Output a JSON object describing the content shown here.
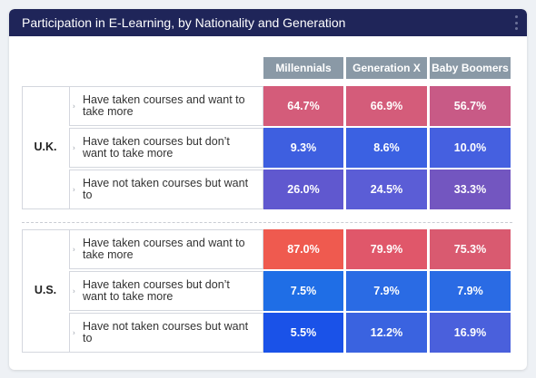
{
  "header": {
    "title": "Participation in E-Learning, by Nationality and Generation"
  },
  "chart_data": {
    "type": "table",
    "title": "Participation in E-Learning, by Nationality and Generation",
    "columns": [
      "Millennials",
      "Generation X",
      "Baby Boomers"
    ],
    "groups": [
      {
        "name": "U.K.",
        "rows": [
          {
            "label": "Have taken courses and want to take more",
            "values": [
              "64.7%",
              "66.9%",
              "56.7%"
            ],
            "numbers": [
              64.7,
              66.9,
              56.7
            ]
          },
          {
            "label": "Have taken courses but don’t want to take more",
            "values": [
              "9.3%",
              "8.6%",
              "10.0%"
            ],
            "numbers": [
              9.3,
              8.6,
              10.0
            ]
          },
          {
            "label": "Have not taken courses but want to",
            "values": [
              "26.0%",
              "24.5%",
              "33.3%"
            ],
            "numbers": [
              26.0,
              24.5,
              33.3
            ]
          }
        ]
      },
      {
        "name": "U.S.",
        "rows": [
          {
            "label": "Have taken courses and want to take more",
            "values": [
              "87.0%",
              "79.9%",
              "75.3%"
            ],
            "numbers": [
              87.0,
              79.9,
              75.3
            ]
          },
          {
            "label": "Have taken courses but don’t want to take more",
            "values": [
              "7.5%",
              "7.9%",
              "7.9%"
            ],
            "numbers": [
              7.5,
              7.9,
              7.9
            ]
          },
          {
            "label": "Have not taken courses but want to",
            "values": [
              "5.5%",
              "12.2%",
              "16.9%"
            ],
            "numbers": [
              5.5,
              12.2,
              16.9
            ]
          }
        ]
      }
    ],
    "colors": {
      "header": "#8a99a6",
      "cells": [
        [
          "#d45c7a",
          "#d45c7a",
          "#c85a86"
        ],
        [
          "#3e5fe0",
          "#3b61e2",
          "#4560e0"
        ],
        [
          "#6058cf",
          "#5b5dd6",
          "#7356c0"
        ],
        [
          "#ef5a4f",
          "#e0576a",
          "#d95a70"
        ],
        [
          "#1f6ee6",
          "#2a6be4",
          "#2a6be4"
        ],
        [
          "#1a52e8",
          "#3a63e0",
          "#4a60dc"
        ]
      ]
    }
  }
}
